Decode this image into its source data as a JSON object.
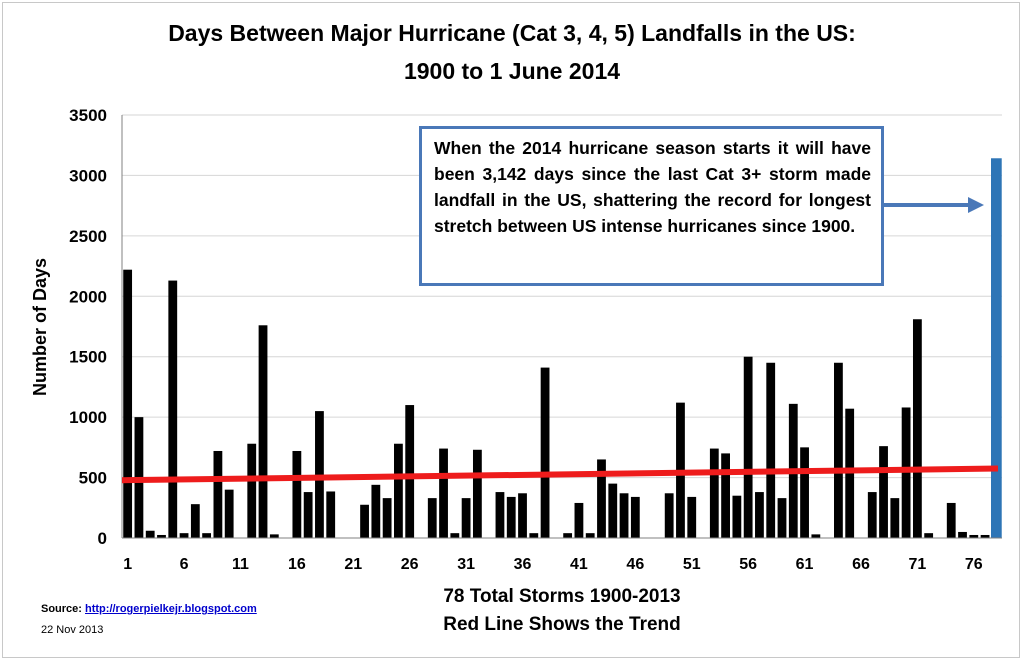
{
  "chart_data": {
    "type": "bar",
    "title": "Days Between Major Hurricane (Cat 3, 4, 5) Landfalls in the US:",
    "subtitle": "1900 to 1 June 2014",
    "ylabel": "Number of Days",
    "xlabel": "78 Total Storms 1900-2013",
    "xlabel2": "Red Line Shows the Trend",
    "ylim": [
      0,
      3500
    ],
    "yticks": [
      "0",
      "500",
      "1000",
      "1500",
      "2000",
      "2500",
      "3000",
      "3500"
    ],
    "xticks": [
      {
        "pos": 1,
        "label": "1"
      },
      {
        "pos": 6,
        "label": "6"
      },
      {
        "pos": 11,
        "label": "11"
      },
      {
        "pos": 16,
        "label": "16"
      },
      {
        "pos": 21,
        "label": "21"
      },
      {
        "pos": 26,
        "label": "26"
      },
      {
        "pos": 31,
        "label": "31"
      },
      {
        "pos": 36,
        "label": "36"
      },
      {
        "pos": 41,
        "label": "41"
      },
      {
        "pos": 46,
        "label": "46"
      },
      {
        "pos": 51,
        "label": "51"
      },
      {
        "pos": 56,
        "label": "56"
      },
      {
        "pos": 61,
        "label": "61"
      },
      {
        "pos": 66,
        "label": "66"
      },
      {
        "pos": 71,
        "label": "71"
      },
      {
        "pos": 76,
        "label": "76"
      }
    ],
    "values": [
      2220,
      1000,
      60,
      25,
      2130,
      40,
      280,
      40,
      720,
      400,
      0,
      780,
      1760,
      30,
      0,
      720,
      380,
      1050,
      385,
      0,
      0,
      275,
      440,
      330,
      780,
      1100,
      0,
      330,
      740,
      40,
      330,
      730,
      0,
      380,
      340,
      370,
      40,
      1410,
      0,
      40,
      290,
      40,
      650,
      450,
      370,
      340,
      0,
      0,
      370,
      1120,
      340,
      0,
      740,
      700,
      350,
      1500,
      380,
      1450,
      330,
      1110,
      750,
      30,
      0,
      1450,
      1070,
      0,
      380,
      760,
      330,
      1080,
      1810,
      40,
      0,
      290,
      50,
      25,
      25,
      3142
    ],
    "highlight_index": 78,
    "highlight_color": "#2e75b6",
    "bar_color": "#000000",
    "trend": {
      "start": 478,
      "end": 575,
      "color": "#ee1c1c"
    },
    "annotation": "When the 2014 hurricane season starts it will have been 3,142 days since the  last Cat 3+ storm made landfall in the US, shattering the record for longest stretch between US intense hurricanes since 1900.",
    "annotation_color": "#4a78b8"
  },
  "source": {
    "label": "Source: ",
    "link": "http://rogerpielkejr.blogspot.com",
    "date": "22 Nov 2013"
  }
}
